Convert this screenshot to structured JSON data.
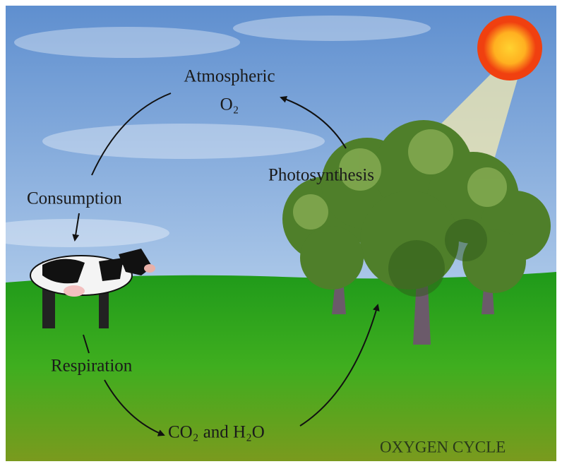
{
  "title": "OXYGEN CYCLE",
  "nodes": [
    {
      "lines": [
        "Atmospheric",
        "O₂"
      ]
    },
    {
      "lines": [
        "CO₂ and H₂O"
      ]
    }
  ],
  "processes": [
    "Consumption",
    "Photosynthesis",
    "Respiration"
  ]
}
